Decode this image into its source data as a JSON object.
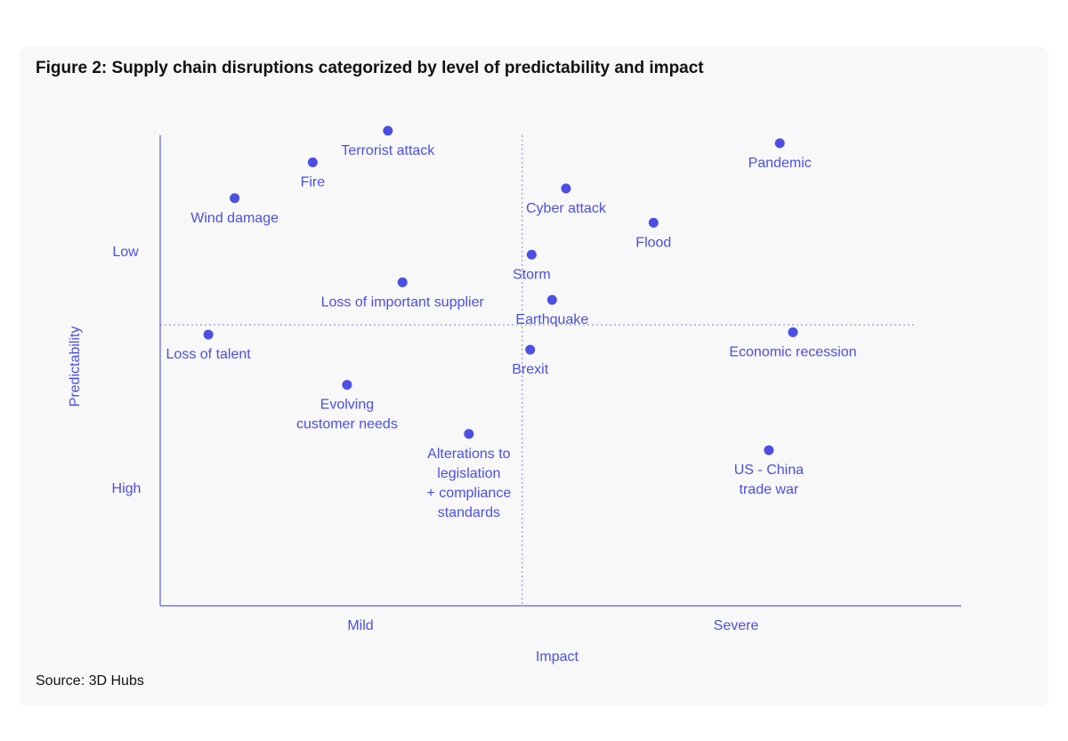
{
  "title": "Figure 2: Supply chain disruptions categorized by level of predictability and impact",
  "source": "Source: 3D Hubs",
  "colors": {
    "accent": "#4b4fe4",
    "axis": "#5a5ee6",
    "text": "#111111",
    "card": "#f8f8f8"
  },
  "chart_data": {
    "type": "scatter",
    "title": "Figure 2: Supply chain disruptions categorized by level of predictability and impact",
    "xlabel": "Impact",
    "ylabel": "Predictability",
    "x_tick_labels": [
      "Mild",
      "Severe"
    ],
    "y_tick_labels": [
      "Low",
      "High"
    ],
    "xlim": [
      0,
      100
    ],
    "ylim": [
      0,
      100
    ],
    "y_direction": "High predictability at bottom, Low at top",
    "grid": false,
    "quadrant_dividers": {
      "x": 49.6,
      "y": 50.2
    },
    "points": [
      {
        "label": [
          "Terrorist attack"
        ],
        "x": 31.2,
        "y": 100
      },
      {
        "label": [
          "Fire"
        ],
        "x": 20.9,
        "y": 91.9
      },
      {
        "label": [
          "Wind damage"
        ],
        "x": 10.2,
        "y": 82.7
      },
      {
        "label": [
          "Pandemic"
        ],
        "x": 84.9,
        "y": 96.8
      },
      {
        "label": [
          "Cyber attack"
        ],
        "x": 55.6,
        "y": 85.2
      },
      {
        "label": [
          "Flood"
        ],
        "x": 67.6,
        "y": 76.4
      },
      {
        "label": [
          "Storm"
        ],
        "x": 50.9,
        "y": 68.2
      },
      {
        "label": [
          "Loss of important supplier"
        ],
        "x": 33.2,
        "y": 61.1
      },
      {
        "label": [
          "Earthquake"
        ],
        "x": 53.7,
        "y": 56.6
      },
      {
        "label": [
          "Loss of talent"
        ],
        "x": 6.6,
        "y": 47.7
      },
      {
        "label": [
          "Economic recession"
        ],
        "x": 86.7,
        "y": 48.3
      },
      {
        "label": [
          "Brexit"
        ],
        "x": 50.7,
        "y": 43.8
      },
      {
        "label": [
          "Evolving",
          "customer needs"
        ],
        "x": 25.6,
        "y": 34.8
      },
      {
        "label": [
          "Alterations to",
          "legislation",
          "+ compliance",
          "standards"
        ],
        "x": 42.3,
        "y": 22.2
      },
      {
        "label": [
          "US - China",
          "trade war"
        ],
        "x": 83.4,
        "y": 18.0
      }
    ]
  }
}
